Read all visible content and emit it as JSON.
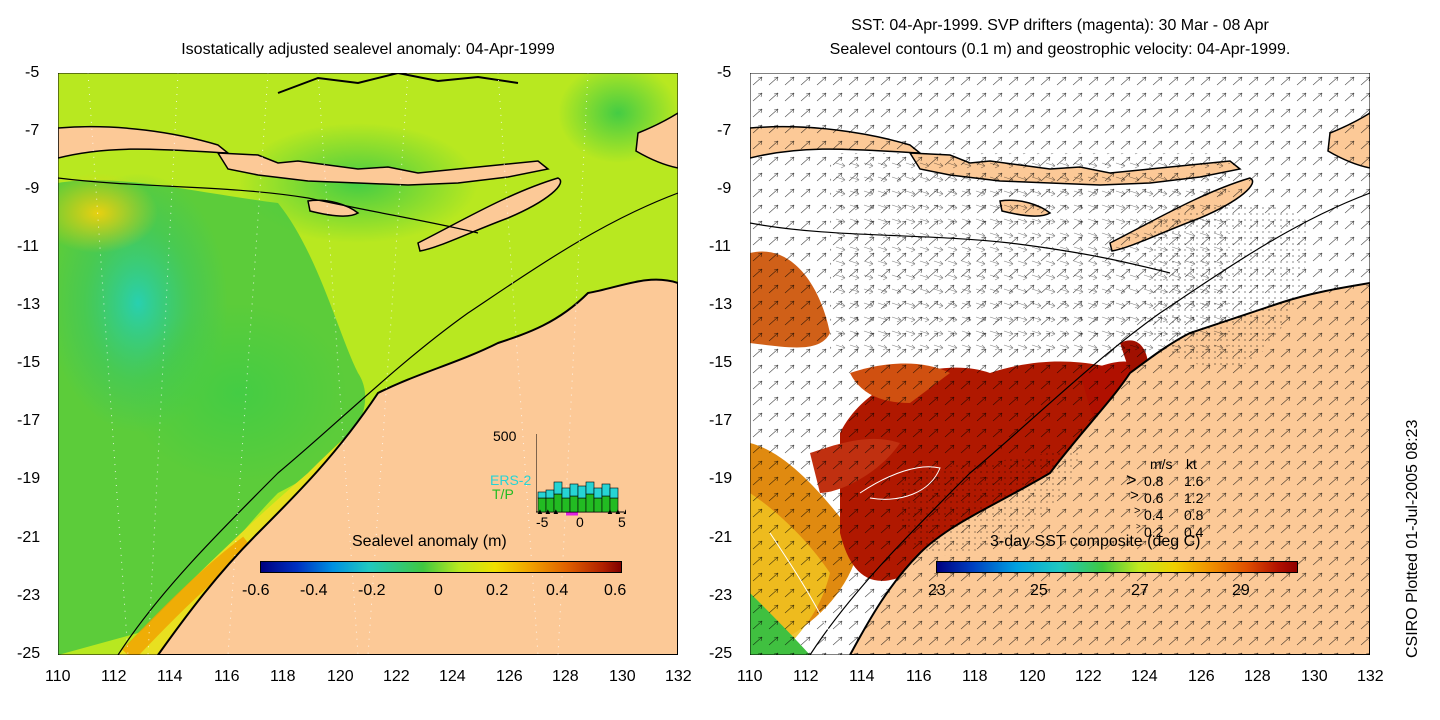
{
  "left_panel": {
    "title": "Isostatically adjusted sealevel anomaly: 04-Apr-1999",
    "colorbar": {
      "label": "Sealevel anomaly (m)",
      "ticks": [
        "-0.6",
        "-0.4",
        "-0.2",
        "0",
        "0.2",
        "0.4",
        "0.6"
      ]
    },
    "inset": {
      "ymax_label": "500",
      "series": [
        "ERS-2",
        "T/P"
      ],
      "series_colors": [
        "#26d4d4",
        "#22bb22"
      ],
      "xticks": [
        "-5",
        "0",
        "5"
      ]
    }
  },
  "right_panel": {
    "title_line1": "SST: 04-Apr-1999. SVP drifters (magenta): 30 Mar - 08 Apr",
    "title_line2": "Sealevel contours (0.1 m) and geostrophic velocity: 04-Apr-1999.",
    "colorbar": {
      "label": "3-day SST composite (deg C)",
      "ticks": [
        "23",
        "25",
        "27",
        "29"
      ]
    },
    "speed_legend": {
      "header_ms": "m/s",
      "header_kt": "kt",
      "rows": [
        {
          "ms": "0.8",
          "kt": "1.6"
        },
        {
          "ms": "0.6",
          "kt": "1.2"
        },
        {
          "ms": "0.4",
          "kt": "0.8"
        },
        {
          "ms": "0.2",
          "kt": "0.4"
        }
      ]
    }
  },
  "axes": {
    "lat_ticks": [
      "-5",
      "-7",
      "-9",
      "-11",
      "-13",
      "-15",
      "-17",
      "-19",
      "-21",
      "-23",
      "-25"
    ],
    "lon_ticks": [
      "110",
      "112",
      "114",
      "116",
      "118",
      "120",
      "122",
      "124",
      "126",
      "128",
      "130",
      "132"
    ],
    "lat_range": [
      -25,
      -5
    ],
    "lon_range": [
      110,
      132
    ]
  },
  "footer": "CSIRO Plotted 01-Jul-2005 08:23",
  "colors": {
    "land": "#fcc997",
    "sst_hot": "#b01000",
    "sst_warm": "#e07010",
    "sla_green": "#3ccc3c",
    "sla_yellow": "#d8f014"
  }
}
